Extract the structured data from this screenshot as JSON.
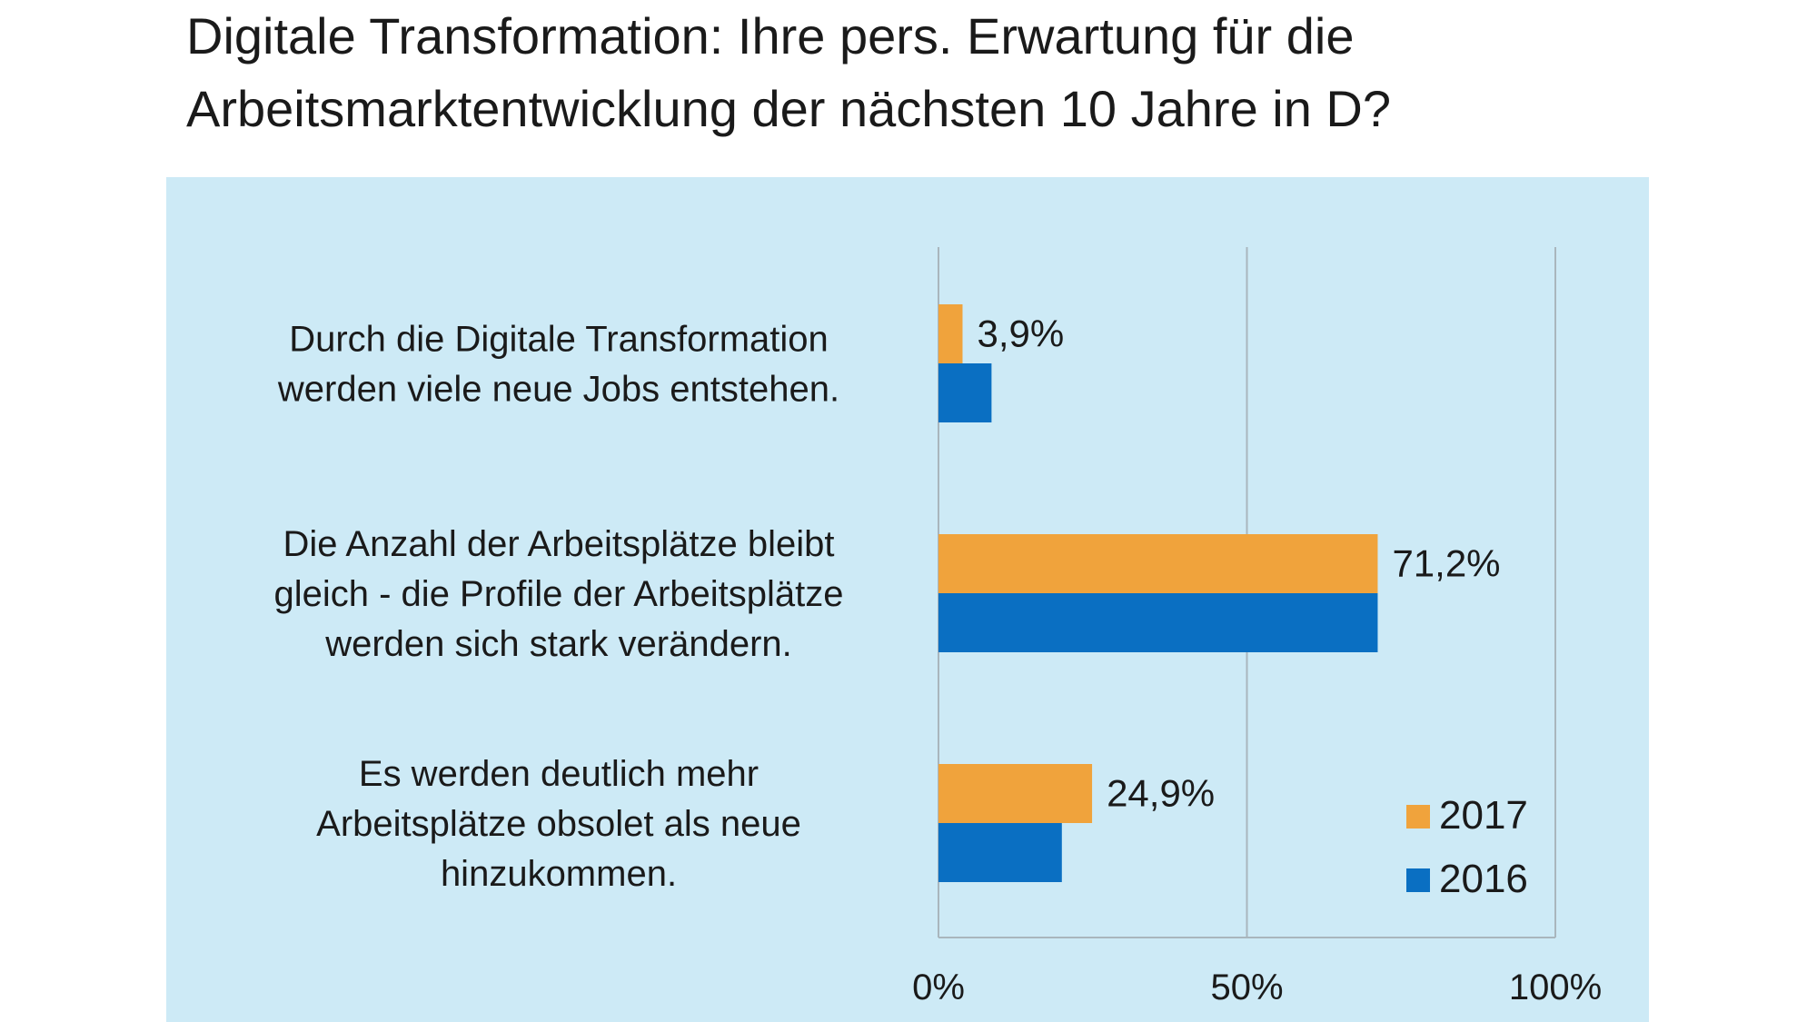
{
  "chart_data": {
    "type": "bar",
    "orientation": "horizontal",
    "title": "Digitale Transformation: Ihre pers. Erwartung für die Arbeitsmarktentwicklung der nächsten 10 Jahre in D?",
    "title_lines": [
      "Digitale Transformation: Ihre pers. Erwartung für die",
      "Arbeitsmarktentwicklung der nächsten 10 Jahre in D?"
    ],
    "categories": [
      [
        "Durch die Digitale Transformation",
        "werden viele neue Jobs entstehen."
      ],
      [
        "Die Anzahl der Arbeitsplätze bleibt",
        "gleich - die Profile der Arbeitsplätze",
        "werden sich stark verändern."
      ],
      [
        "Es werden deutlich mehr",
        "Arbeitsplätze obsolet als neue",
        "hinzukommen."
      ]
    ],
    "series": [
      {
        "name": "2017",
        "color": "#f0a33c",
        "values": [
          3.9,
          71.2,
          24.9
        ],
        "labels": [
          "3,9%",
          "71,2%",
          "24,9%"
        ]
      },
      {
        "name": "2016",
        "color": "#0a6fc2",
        "values": [
          8.6,
          71.2,
          20.0
        ],
        "labels": [
          null,
          null,
          null
        ]
      }
    ],
    "xlim": [
      0,
      100
    ],
    "xticks": [
      0,
      50,
      100
    ],
    "xtick_labels": [
      "0%",
      "50%",
      "100%"
    ],
    "grid": true,
    "legend_position": "bottom-right",
    "background_color": "#cdeaf6",
    "gridline_color": "#a9b6bd"
  }
}
